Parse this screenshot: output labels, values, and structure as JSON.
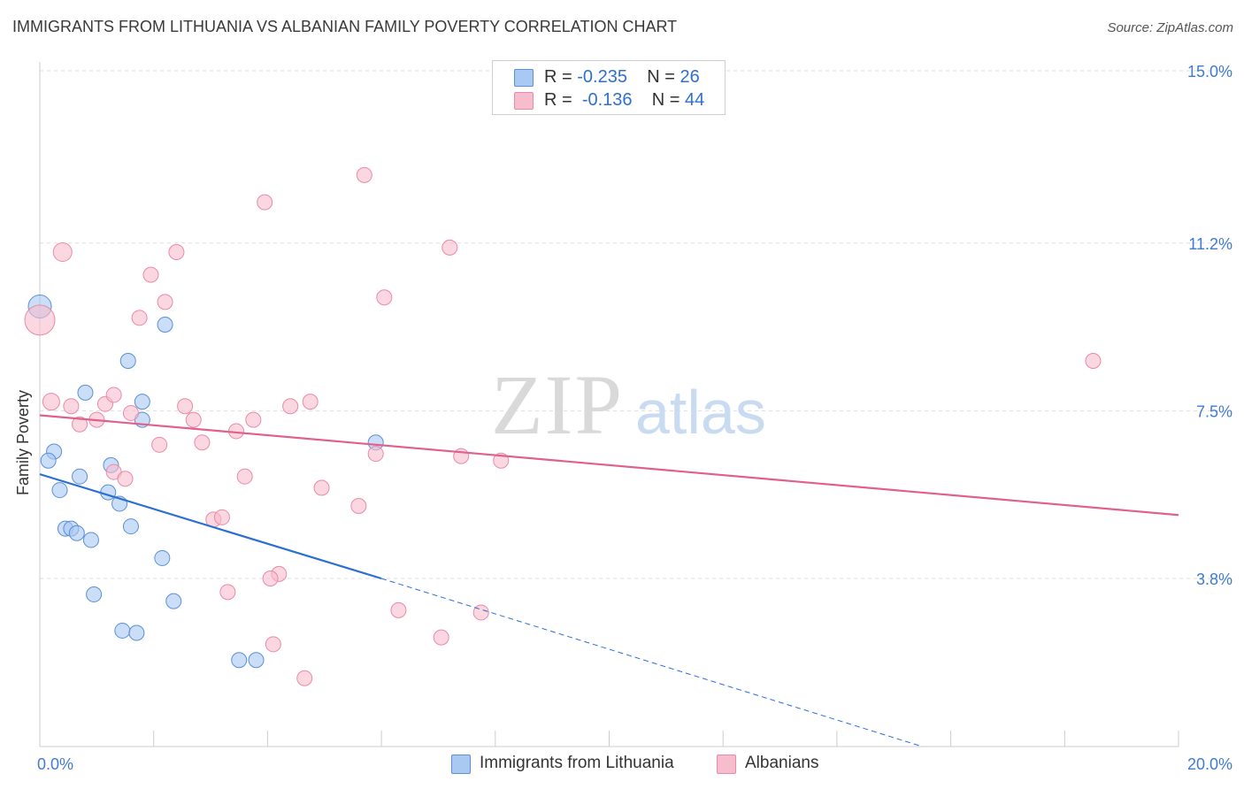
{
  "header": {
    "title": "IMMIGRANTS FROM LITHUANIA VS ALBANIAN FAMILY POVERTY CORRELATION CHART",
    "source": "Source: ZipAtlas.com"
  },
  "watermark": {
    "zip": "ZIP",
    "atlas": "atlas"
  },
  "stats_legend": {
    "rows": [
      {
        "r_label": "R =",
        "r_value": "-0.235",
        "n_label": "N =",
        "n_value": "26",
        "color": "#a9c8f2"
      },
      {
        "r_label": "R =",
        "r_value": "-0.136",
        "n_label": "N =",
        "n_value": "44",
        "color": "#f7bccd"
      }
    ]
  },
  "bottom_legend": [
    {
      "label": "Immigrants from Lithuania",
      "color": "#a9c8f2"
    },
    {
      "label": "Albanians",
      "color": "#f7bccd"
    }
  ],
  "chart_data": {
    "type": "scatter",
    "title": "IMMIGRANTS FROM LITHUANIA VS ALBANIAN FAMILY POVERTY CORRELATION CHART",
    "xlabel": "",
    "ylabel": "Family Poverty",
    "xlim": [
      0,
      20
    ],
    "ylim": [
      0,
      16
    ],
    "x_tick_labels": [
      "0.0%",
      "20.0%"
    ],
    "y_ticks": [
      3.8,
      7.5,
      11.2,
      15.0
    ],
    "y_tick_labels": [
      "3.8%",
      "7.5%",
      "11.2%",
      "15.0%"
    ],
    "grid": true,
    "legend_position": "top-center",
    "series": [
      {
        "name": "Immigrants from Lithuania",
        "color": "#a9c8f2",
        "stroke": "#5b8fd6",
        "trend_color": "#2a6fd2",
        "trend": {
          "x0": 0.0,
          "y0": 6.1,
          "x1": 6.0,
          "y1": 3.8,
          "dash_to_x": 15.5,
          "dash_to_y": 0.0
        },
        "points": [
          [
            0.0,
            9.8,
            26
          ],
          [
            0.25,
            6.6,
            17
          ],
          [
            0.15,
            6.4,
            17
          ],
          [
            0.35,
            5.75,
            17
          ],
          [
            0.8,
            7.9,
            17
          ],
          [
            0.7,
            6.05,
            17
          ],
          [
            1.25,
            6.3,
            17
          ],
          [
            1.2,
            5.7,
            17
          ],
          [
            1.4,
            5.45,
            17
          ],
          [
            1.55,
            8.6,
            17
          ],
          [
            1.8,
            7.7,
            17
          ],
          [
            1.8,
            7.3,
            17
          ],
          [
            2.2,
            9.4,
            17
          ],
          [
            0.45,
            4.9,
            17
          ],
          [
            0.55,
            4.9,
            17
          ],
          [
            0.65,
            4.8,
            17
          ],
          [
            0.9,
            4.65,
            17
          ],
          [
            1.6,
            4.95,
            17
          ],
          [
            2.15,
            4.25,
            17
          ],
          [
            0.95,
            3.45,
            17
          ],
          [
            2.35,
            3.3,
            17
          ],
          [
            1.45,
            2.65,
            17
          ],
          [
            1.7,
            2.6,
            17
          ],
          [
            3.5,
            2.0,
            17
          ],
          [
            3.8,
            2.0,
            17
          ],
          [
            5.9,
            6.8,
            17
          ]
        ]
      },
      {
        "name": "Albanians",
        "color": "#f7bccd",
        "stroke": "#e98aa8",
        "trend_color": "#e0608c",
        "trend": {
          "x0": 0.0,
          "y0": 7.4,
          "x1": 20.0,
          "y1": 5.2
        },
        "points": [
          [
            0.0,
            9.5,
            34
          ],
          [
            0.4,
            11.0,
            21
          ],
          [
            0.2,
            7.7,
            19
          ],
          [
            0.55,
            7.6,
            17
          ],
          [
            0.7,
            7.2,
            17
          ],
          [
            1.0,
            7.3,
            17
          ],
          [
            1.15,
            7.65,
            17
          ],
          [
            1.3,
            7.85,
            17
          ],
          [
            1.6,
            7.45,
            17
          ],
          [
            1.75,
            9.55,
            17
          ],
          [
            1.95,
            10.5,
            17
          ],
          [
            2.1,
            6.75,
            17
          ],
          [
            2.2,
            9.9,
            17
          ],
          [
            2.4,
            11.0,
            17
          ],
          [
            2.55,
            7.6,
            17
          ],
          [
            2.7,
            7.3,
            17
          ],
          [
            2.85,
            6.8,
            17
          ],
          [
            3.45,
            7.05,
            17
          ],
          [
            3.6,
            6.05,
            17
          ],
          [
            3.75,
            7.3,
            17
          ],
          [
            3.95,
            12.1,
            17
          ],
          [
            4.4,
            7.6,
            17
          ],
          [
            4.75,
            7.7,
            17
          ],
          [
            1.3,
            6.15,
            17
          ],
          [
            1.5,
            6.0,
            17
          ],
          [
            4.95,
            5.8,
            17
          ],
          [
            5.6,
            5.4,
            17
          ],
          [
            3.05,
            5.1,
            17
          ],
          [
            3.2,
            5.15,
            17
          ],
          [
            4.2,
            3.9,
            17
          ],
          [
            4.05,
            3.8,
            17
          ],
          [
            3.3,
            3.5,
            17
          ],
          [
            5.7,
            12.7,
            17
          ],
          [
            6.3,
            3.1,
            17
          ],
          [
            6.05,
            10.0,
            17
          ],
          [
            7.2,
            11.1,
            17
          ],
          [
            7.4,
            6.5,
            17
          ],
          [
            8.1,
            6.4,
            17
          ],
          [
            7.75,
            3.05,
            17
          ],
          [
            7.05,
            2.5,
            17
          ],
          [
            4.1,
            2.35,
            17
          ],
          [
            4.65,
            1.6,
            17
          ],
          [
            18.5,
            8.6,
            17
          ],
          [
            5.9,
            6.55,
            17
          ]
        ]
      }
    ]
  }
}
